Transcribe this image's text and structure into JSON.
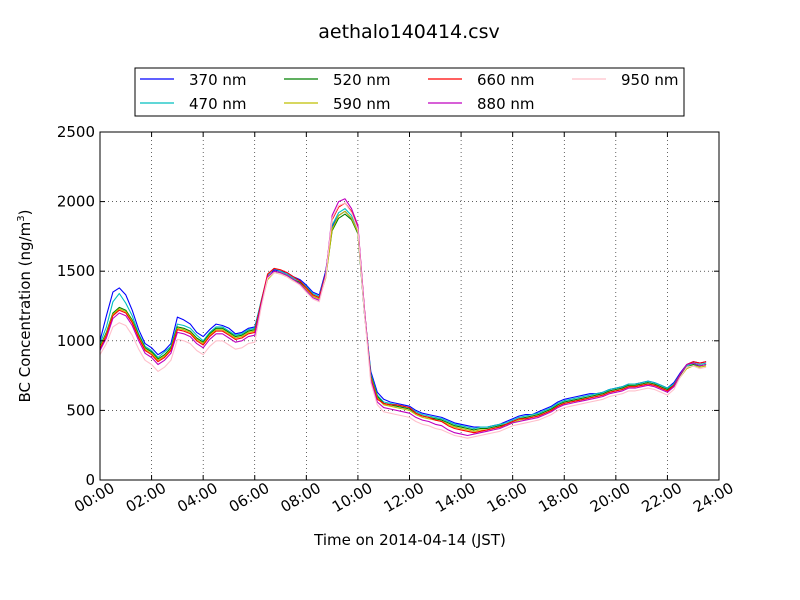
{
  "chart_data": {
    "type": "line",
    "title": "aethalo140414.csv",
    "xlabel": "Time on 2014-04-14 (JST)",
    "ylabel": "BC Concentration (ng/m³)",
    "ylabel_main": "BC Concentration (ng/m",
    "ylabel_sup": "3",
    "ylabel_tail": ")",
    "xlim": [
      0,
      24
    ],
    "ylim": [
      0,
      2500
    ],
    "x_ticks": [
      0,
      2,
      4,
      6,
      8,
      10,
      12,
      14,
      16,
      18,
      20,
      22,
      24
    ],
    "x_tick_labels": [
      "00:00",
      "02:00",
      "04:00",
      "06:00",
      "08:00",
      "10:00",
      "12:00",
      "14:00",
      "16:00",
      "18:00",
      "20:00",
      "22:00",
      "24:00"
    ],
    "y_ticks": [
      0,
      500,
      1000,
      1500,
      2000,
      2500
    ],
    "y_tick_labels": [
      "0",
      "500",
      "1000",
      "1500",
      "2000",
      "2500"
    ],
    "grid": true,
    "legend_position": "top-center",
    "x": [
      0.0,
      0.25,
      0.5,
      0.75,
      1.0,
      1.25,
      1.5,
      1.75,
      2.0,
      2.25,
      2.5,
      2.75,
      3.0,
      3.25,
      3.5,
      3.75,
      4.0,
      4.25,
      4.5,
      4.75,
      5.0,
      5.25,
      5.5,
      5.75,
      6.0,
      6.25,
      6.5,
      6.75,
      7.0,
      7.25,
      7.5,
      7.75,
      8.0,
      8.25,
      8.5,
      8.75,
      9.0,
      9.25,
      9.5,
      9.75,
      10.0,
      10.25,
      10.5,
      10.75,
      11.0,
      11.25,
      11.5,
      11.75,
      12.0,
      12.25,
      12.5,
      12.75,
      13.0,
      13.25,
      13.5,
      13.75,
      14.0,
      14.25,
      14.5,
      14.75,
      15.0,
      15.25,
      15.5,
      15.75,
      16.0,
      16.25,
      16.5,
      16.75,
      17.0,
      17.25,
      17.5,
      17.75,
      18.0,
      18.25,
      18.5,
      18.75,
      19.0,
      19.25,
      19.5,
      19.75,
      20.0,
      20.25,
      20.5,
      20.75,
      21.0,
      21.25,
      21.5,
      21.75,
      22.0,
      22.25,
      22.5,
      22.75,
      23.0,
      23.25,
      23.5
    ],
    "series": [
      {
        "name": "370 nm",
        "color": "#0000ff",
        "values": [
          1000,
          1180,
          1350,
          1380,
          1330,
          1220,
          1080,
          980,
          950,
          900,
          930,
          980,
          1170,
          1150,
          1120,
          1060,
          1030,
          1080,
          1120,
          1110,
          1090,
          1050,
          1060,
          1090,
          1100,
          1280,
          1450,
          1510,
          1500,
          1490,
          1460,
          1440,
          1400,
          1350,
          1330,
          1500,
          1820,
          1900,
          1930,
          1880,
          1780,
          1200,
          780,
          630,
          580,
          560,
          550,
          540,
          530,
          500,
          480,
          470,
          460,
          450,
          430,
          410,
          400,
          390,
          380,
          380,
          380,
          390,
          400,
          420,
          440,
          460,
          470,
          470,
          490,
          510,
          530,
          560,
          580,
          590,
          600,
          610,
          620,
          620,
          630,
          650,
          660,
          670,
          690,
          690,
          700,
          710,
          700,
          680,
          660,
          700,
          770,
          830,
          850,
          840,
          850
        ]
      },
      {
        "name": "470 nm",
        "color": "#00bfbf",
        "values": [
          980,
          1100,
          1280,
          1340,
          1270,
          1180,
          1050,
          960,
          930,
          880,
          920,
          960,
          1120,
          1110,
          1090,
          1040,
          1000,
          1060,
          1100,
          1100,
          1070,
          1040,
          1050,
          1080,
          1090,
          1290,
          1470,
          1520,
          1500,
          1480,
          1450,
          1430,
          1390,
          1340,
          1320,
          1480,
          1830,
          1920,
          1950,
          1900,
          1800,
          1220,
          760,
          610,
          560,
          550,
          540,
          530,
          520,
          490,
          470,
          460,
          450,
          440,
          420,
          400,
          390,
          380,
          370,
          380,
          380,
          390,
          400,
          410,
          430,
          450,
          460,
          470,
          480,
          500,
          520,
          550,
          570,
          580,
          590,
          600,
          610,
          620,
          630,
          650,
          660,
          670,
          690,
          690,
          700,
          710,
          700,
          680,
          660,
          690,
          760,
          820,
          840,
          830,
          840
        ]
      },
      {
        "name": "520 nm",
        "color": "#008000",
        "values": [
          960,
          1060,
          1200,
          1240,
          1220,
          1150,
          1040,
          950,
          920,
          870,
          900,
          950,
          1100,
          1090,
          1070,
          1020,
          990,
          1050,
          1090,
          1090,
          1060,
          1030,
          1040,
          1070,
          1080,
          1270,
          1450,
          1500,
          1490,
          1470,
          1440,
          1420,
          1380,
          1330,
          1310,
          1460,
          1790,
          1880,
          1910,
          1870,
          1770,
          1200,
          750,
          600,
          550,
          540,
          530,
          520,
          510,
          480,
          460,
          450,
          440,
          430,
          410,
          390,
          380,
          370,
          360,
          370,
          370,
          380,
          390,
          400,
          420,
          440,
          450,
          460,
          470,
          490,
          510,
          540,
          560,
          570,
          580,
          590,
          600,
          610,
          620,
          640,
          650,
          660,
          680,
          680,
          690,
          700,
          690,
          670,
          650,
          680,
          750,
          810,
          830,
          820,
          830
        ]
      },
      {
        "name": "590 nm",
        "color": "#bfbf00",
        "values": [
          950,
          1050,
          1190,
          1230,
          1210,
          1140,
          1030,
          940,
          910,
          860,
          890,
          940,
          1090,
          1080,
          1060,
          1010,
          980,
          1040,
          1080,
          1080,
          1050,
          1020,
          1030,
          1060,
          1070,
          1260,
          1440,
          1490,
          1480,
          1460,
          1430,
          1410,
          1370,
          1320,
          1300,
          1450,
          1800,
          1900,
          1930,
          1880,
          1780,
          1210,
          740,
          590,
          540,
          530,
          520,
          510,
          500,
          470,
          450,
          440,
          430,
          420,
          400,
          380,
          370,
          360,
          350,
          360,
          360,
          370,
          380,
          390,
          410,
          430,
          440,
          450,
          460,
          480,
          500,
          530,
          550,
          560,
          570,
          580,
          590,
          600,
          610,
          630,
          640,
          650,
          670,
          670,
          680,
          690,
          680,
          660,
          640,
          670,
          740,
          800,
          820,
          810,
          820
        ]
      },
      {
        "name": "660 nm",
        "color": "#ff0000",
        "values": [
          940,
          1040,
          1180,
          1220,
          1200,
          1130,
          1020,
          930,
          900,
          850,
          880,
          930,
          1080,
          1070,
          1050,
          1000,
          970,
          1030,
          1070,
          1070,
          1040,
          1010,
          1020,
          1050,
          1060,
          1280,
          1480,
          1520,
          1510,
          1490,
          1460,
          1430,
          1380,
          1330,
          1310,
          1480,
          1870,
          1960,
          1990,
          1930,
          1820,
          1230,
          730,
          580,
          550,
          540,
          540,
          530,
          520,
          480,
          460,
          450,
          430,
          420,
          390,
          370,
          360,
          350,
          340,
          350,
          360,
          370,
          380,
          400,
          420,
          440,
          440,
          450,
          460,
          480,
          500,
          530,
          550,
          560,
          570,
          580,
          590,
          600,
          610,
          630,
          640,
          650,
          670,
          670,
          680,
          690,
          680,
          660,
          640,
          680,
          760,
          830,
          850,
          840,
          850
        ]
      },
      {
        "name": "880 nm",
        "color": "#bf00bf",
        "values": [
          930,
          1020,
          1160,
          1200,
          1180,
          1110,
          1000,
          910,
          880,
          830,
          860,
          910,
          1060,
          1050,
          1030,
          980,
          950,
          1010,
          1050,
          1050,
          1020,
          990,
          1000,
          1030,
          1040,
          1260,
          1460,
          1500,
          1490,
          1470,
          1440,
          1410,
          1360,
          1310,
          1290,
          1470,
          1900,
          2000,
          2020,
          1950,
          1830,
          1230,
          720,
          560,
          520,
          510,
          500,
          490,
          480,
          450,
          430,
          420,
          400,
          390,
          360,
          340,
          330,
          320,
          330,
          340,
          350,
          360,
          370,
          390,
          410,
          420,
          430,
          440,
          450,
          470,
          490,
          520,
          540,
          550,
          560,
          570,
          580,
          590,
          600,
          620,
          630,
          640,
          660,
          660,
          670,
          680,
          670,
          650,
          630,
          670,
          760,
          830,
          840,
          820,
          830
        ]
      },
      {
        "name": "950 nm",
        "color": "#ffc0cb",
        "values": [
          900,
          980,
          1100,
          1130,
          1110,
          1040,
          940,
          860,
          830,
          780,
          810,
          860,
          1010,
          1000,
          980,
          930,
          900,
          960,
          1000,
          1000,
          970,
          940,
          950,
          980,
          990,
          1240,
          1450,
          1490,
          1480,
          1460,
          1430,
          1400,
          1350,
          1300,
          1280,
          1460,
          1880,
          1970,
          1990,
          1920,
          1800,
          1200,
          700,
          540,
          490,
          480,
          470,
          460,
          450,
          420,
          400,
          390,
          370,
          360,
          340,
          320,
          310,
          300,
          310,
          320,
          330,
          340,
          350,
          370,
          390,
          400,
          410,
          420,
          430,
          450,
          470,
          500,
          520,
          530,
          540,
          550,
          560,
          570,
          580,
          600,
          610,
          620,
          640,
          640,
          650,
          660,
          650,
          630,
          610,
          650,
          740,
          810,
          820,
          800,
          810
        ]
      }
    ]
  }
}
